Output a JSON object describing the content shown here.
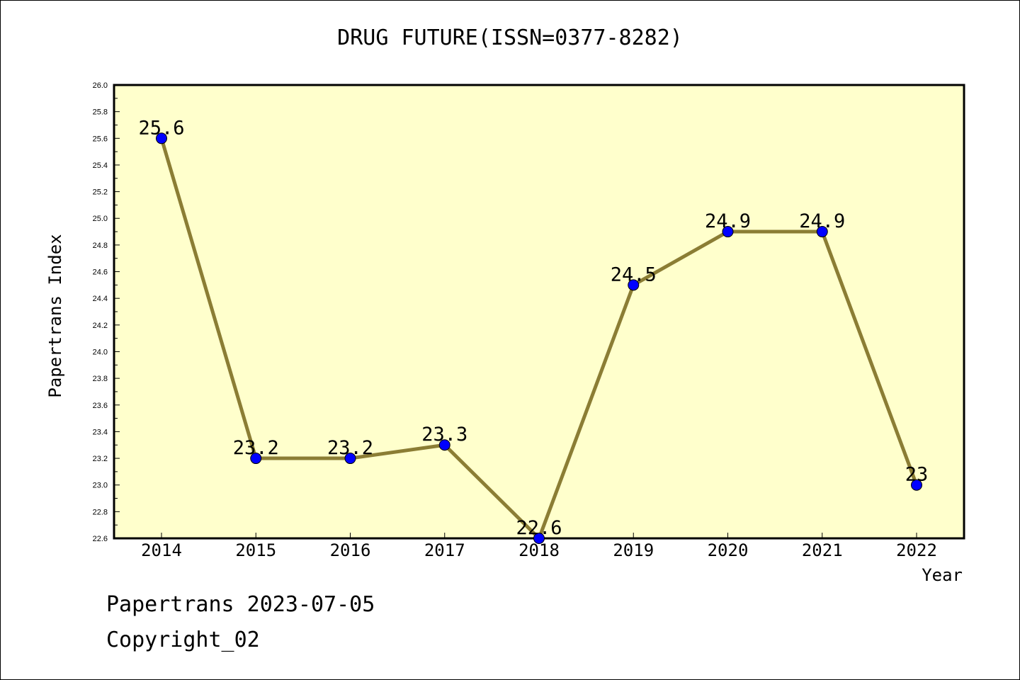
{
  "chart_data": {
    "type": "line",
    "title": "DRUG FUTURE(ISSN=0377-8282)",
    "xlabel": "Year",
    "ylabel": "Papertrans Index",
    "categories": [
      "2014",
      "2015",
      "2016",
      "2017",
      "2018",
      "2019",
      "2020",
      "2021",
      "2022"
    ],
    "series": [
      {
        "values": [
          25.6,
          23.2,
          23.2,
          23.3,
          22.6,
          24.5,
          24.9,
          24.9,
          23.0
        ]
      }
    ],
    "data_labels": [
      "25.6",
      "23.2",
      "23.2",
      "23.3",
      "22.6",
      "24.5",
      "24.9",
      "24.9",
      "23"
    ],
    "ylim": [
      22.6,
      26.0
    ],
    "yticks": [
      "22.6",
      "22.8",
      "23.0",
      "23.2",
      "23.4",
      "23.6",
      "23.8",
      "24.0",
      "24.2",
      "24.4",
      "24.6",
      "24.8",
      "25.0",
      "25.2",
      "25.4",
      "25.6",
      "25.8",
      "26.0"
    ],
    "grid": false,
    "colors": {
      "plot_background": "#ffffcc",
      "line": "#8b7d34",
      "marker": "#0000ff"
    }
  },
  "footer": {
    "line1": "Papertrans 2023-07-05",
    "line2": "Copyright_02"
  }
}
